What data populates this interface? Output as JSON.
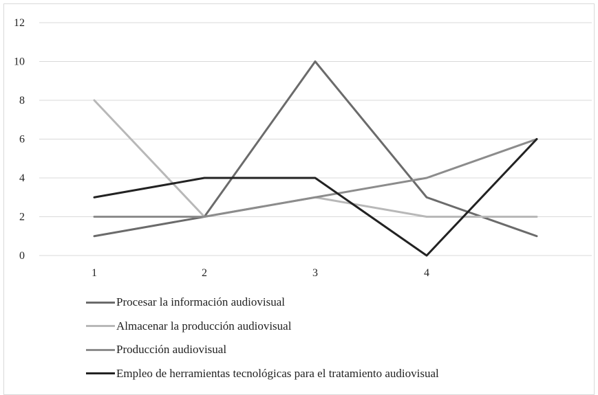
{
  "chart_data": {
    "type": "line",
    "x": [
      1,
      2,
      3,
      4,
      5
    ],
    "x_tick_labels": [
      "1",
      "2",
      "3",
      "4"
    ],
    "ylim": [
      0,
      12
    ],
    "y_ticks": [
      0,
      2,
      4,
      6,
      8,
      10,
      12
    ],
    "y_tick_labels": [
      "0",
      "2",
      "4",
      "6",
      "8",
      "10",
      "12"
    ],
    "grid": "horizontal",
    "legend_position": "bottom-left",
    "series": [
      {
        "name": "Procesar la información audiovisual",
        "values": [
          1,
          2,
          10,
          3,
          1
        ],
        "color": "#6b6b6b"
      },
      {
        "name": "Almacenar la producción audiovisual",
        "values": [
          8,
          2,
          3,
          2,
          2
        ],
        "color": "#b8b8b8"
      },
      {
        "name": "Producción audiovisual",
        "values": [
          2,
          2,
          3,
          4,
          6
        ],
        "color": "#8c8c8c"
      },
      {
        "name": "Empleo de herramientas tecnológicas para el tratamiento audiovisual",
        "values": [
          3,
          4,
          4,
          0,
          6
        ],
        "color": "#222222"
      }
    ]
  }
}
